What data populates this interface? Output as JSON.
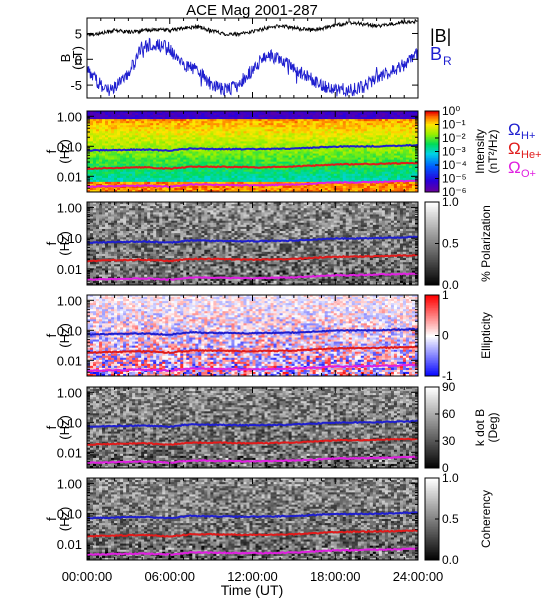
{
  "chart_data": {
    "type": "multi-panel",
    "title": "ACE Mag 2001-287",
    "xlabel": "Time (UT)",
    "x_tick_labels": [
      "00:00:00",
      "06:00:00",
      "12:00:00",
      "18:00:00",
      "24:00:00"
    ],
    "x_ticks_hours": [
      0,
      6,
      12,
      18,
      24
    ],
    "xlim_hours": [
      0,
      24
    ],
    "panels": [
      {
        "kind": "line",
        "ylabel": [
          "B",
          "(nT)"
        ],
        "ylim": [
          -7.5,
          8
        ],
        "yticks": [
          -5,
          0,
          5
        ],
        "ytick_labels": [
          "-5",
          "0",
          "5"
        ],
        "legend": [
          {
            "label": "|B|",
            "color": "#000000"
          },
          {
            "label_main": "B",
            "label_sub": "R",
            "color": "#1f1fcf"
          }
        ],
        "series": [
          {
            "name": "|B|",
            "color": "#000000",
            "hours": [
              0,
              1,
              2,
              3,
              4,
              5,
              6,
              7,
              8,
              9,
              10,
              11,
              12,
              13,
              14,
              15,
              16,
              17,
              18,
              19,
              20,
              21,
              22,
              23,
              24
            ],
            "values": [
              4.8,
              5.0,
              5.6,
              5.3,
              5.5,
              5.8,
              5.6,
              6.0,
              6.3,
              5.6,
              4.9,
              4.8,
              5.4,
              6.0,
              6.5,
              6.1,
              5.7,
              5.9,
              6.6,
              7.0,
              6.9,
              6.4,
              6.8,
              7.2,
              7.4
            ]
          },
          {
            "name": "B_R",
            "color": "#1f1fcf",
            "hours": [
              0,
              1,
              2,
              3,
              4,
              5,
              6,
              7,
              8,
              9,
              10,
              11,
              12,
              13,
              14,
              15,
              16,
              17,
              18,
              19,
              20,
              21,
              22,
              23,
              24
            ],
            "values": [
              -2.0,
              -5.0,
              -5.5,
              -3.0,
              2.5,
              3.0,
              2.0,
              -1.0,
              -2.0,
              -5.0,
              -5.8,
              -5.0,
              -2.0,
              1.0,
              0.0,
              -1.5,
              -3.5,
              -5.0,
              -5.8,
              -6.0,
              -5.5,
              -3.5,
              -2.5,
              -1.0,
              1.0
            ]
          }
        ]
      },
      {
        "kind": "spectrogram",
        "ylabel": [
          "f",
          "(Hz)"
        ],
        "ytick_labels": [
          "1.00",
          "0.10",
          "0.01"
        ],
        "colorbar": {
          "label": [
            "Intensity",
            "(nT²/Hz)"
          ],
          "tick_labels": [
            "10⁰",
            "10⁻¹",
            "10⁻²",
            "10⁻³",
            "10⁻⁴",
            "10⁻⁵",
            "10⁻⁶"
          ]
        },
        "annotations": [
          {
            "main": "Ω",
            "sub": "H+",
            "color": "#1f1fcf"
          },
          {
            "main": "Ω",
            "sub": "He+",
            "color": "#e01b1b"
          },
          {
            "main": "Ω",
            "sub": "O+",
            "color": "#e020e0"
          }
        ]
      },
      {
        "kind": "spectrogram",
        "ylabel": [
          "f",
          "(Hz)"
        ],
        "ytick_labels": [
          "1.00",
          "0.10",
          "0.01"
        ],
        "colorbar": {
          "label": [
            "% Polarization"
          ],
          "tick_labels": [
            "1.0",
            "0.5",
            "0.0"
          ]
        }
      },
      {
        "kind": "spectrogram",
        "ylabel": [
          "f",
          "(Hz)"
        ],
        "ytick_labels": [
          "1.00",
          "0.10",
          "0.01"
        ],
        "colorbar": {
          "label": [
            "Ellipticity"
          ],
          "tick_labels": [
            "1",
            "0",
            "-1"
          ]
        }
      },
      {
        "kind": "spectrogram",
        "ylabel": [
          "f",
          "(Hz)"
        ],
        "ytick_labels": [
          "1.00",
          "0.10",
          "0.01"
        ],
        "colorbar": {
          "label": [
            "k dot B",
            "(Deg)"
          ],
          "tick_labels": [
            "90",
            "60",
            "30",
            "0"
          ]
        }
      },
      {
        "kind": "spectrogram",
        "ylabel": [
          "f",
          "(Hz)"
        ],
        "ytick_labels": [
          "1.00",
          "0.10",
          "0.01"
        ],
        "colorbar": {
          "label": [
            "Coherency"
          ],
          "tick_labels": [
            "1.0",
            "0.5",
            "0.0"
          ]
        }
      }
    ],
    "gyrofrequency_lines": [
      {
        "name": "ΩH+",
        "color": "#1f1fcf",
        "hours": [
          0,
          2,
          4,
          6,
          7.5,
          9,
          12,
          15,
          18,
          21,
          24
        ],
        "f_hz": [
          0.072,
          0.075,
          0.078,
          0.072,
          0.085,
          0.082,
          0.08,
          0.084,
          0.098,
          0.1,
          0.11
        ]
      },
      {
        "name": "ΩHe+",
        "color": "#e01b1b",
        "hours": [
          0,
          2,
          4,
          6,
          7.5,
          9,
          12,
          15,
          18,
          21,
          24
        ],
        "f_hz": [
          0.018,
          0.019,
          0.02,
          0.018,
          0.021,
          0.021,
          0.02,
          0.021,
          0.025,
          0.026,
          0.028
        ]
      },
      {
        "name": "ΩO+",
        "color": "#e020e0",
        "hours": [
          0,
          2,
          4,
          6,
          7.5,
          9,
          12,
          15,
          18,
          21,
          24
        ],
        "f_hz": [
          0.0045,
          0.0047,
          0.0049,
          0.0045,
          0.0053,
          0.0052,
          0.005,
          0.0053,
          0.0062,
          0.0065,
          0.007
        ]
      }
    ]
  }
}
